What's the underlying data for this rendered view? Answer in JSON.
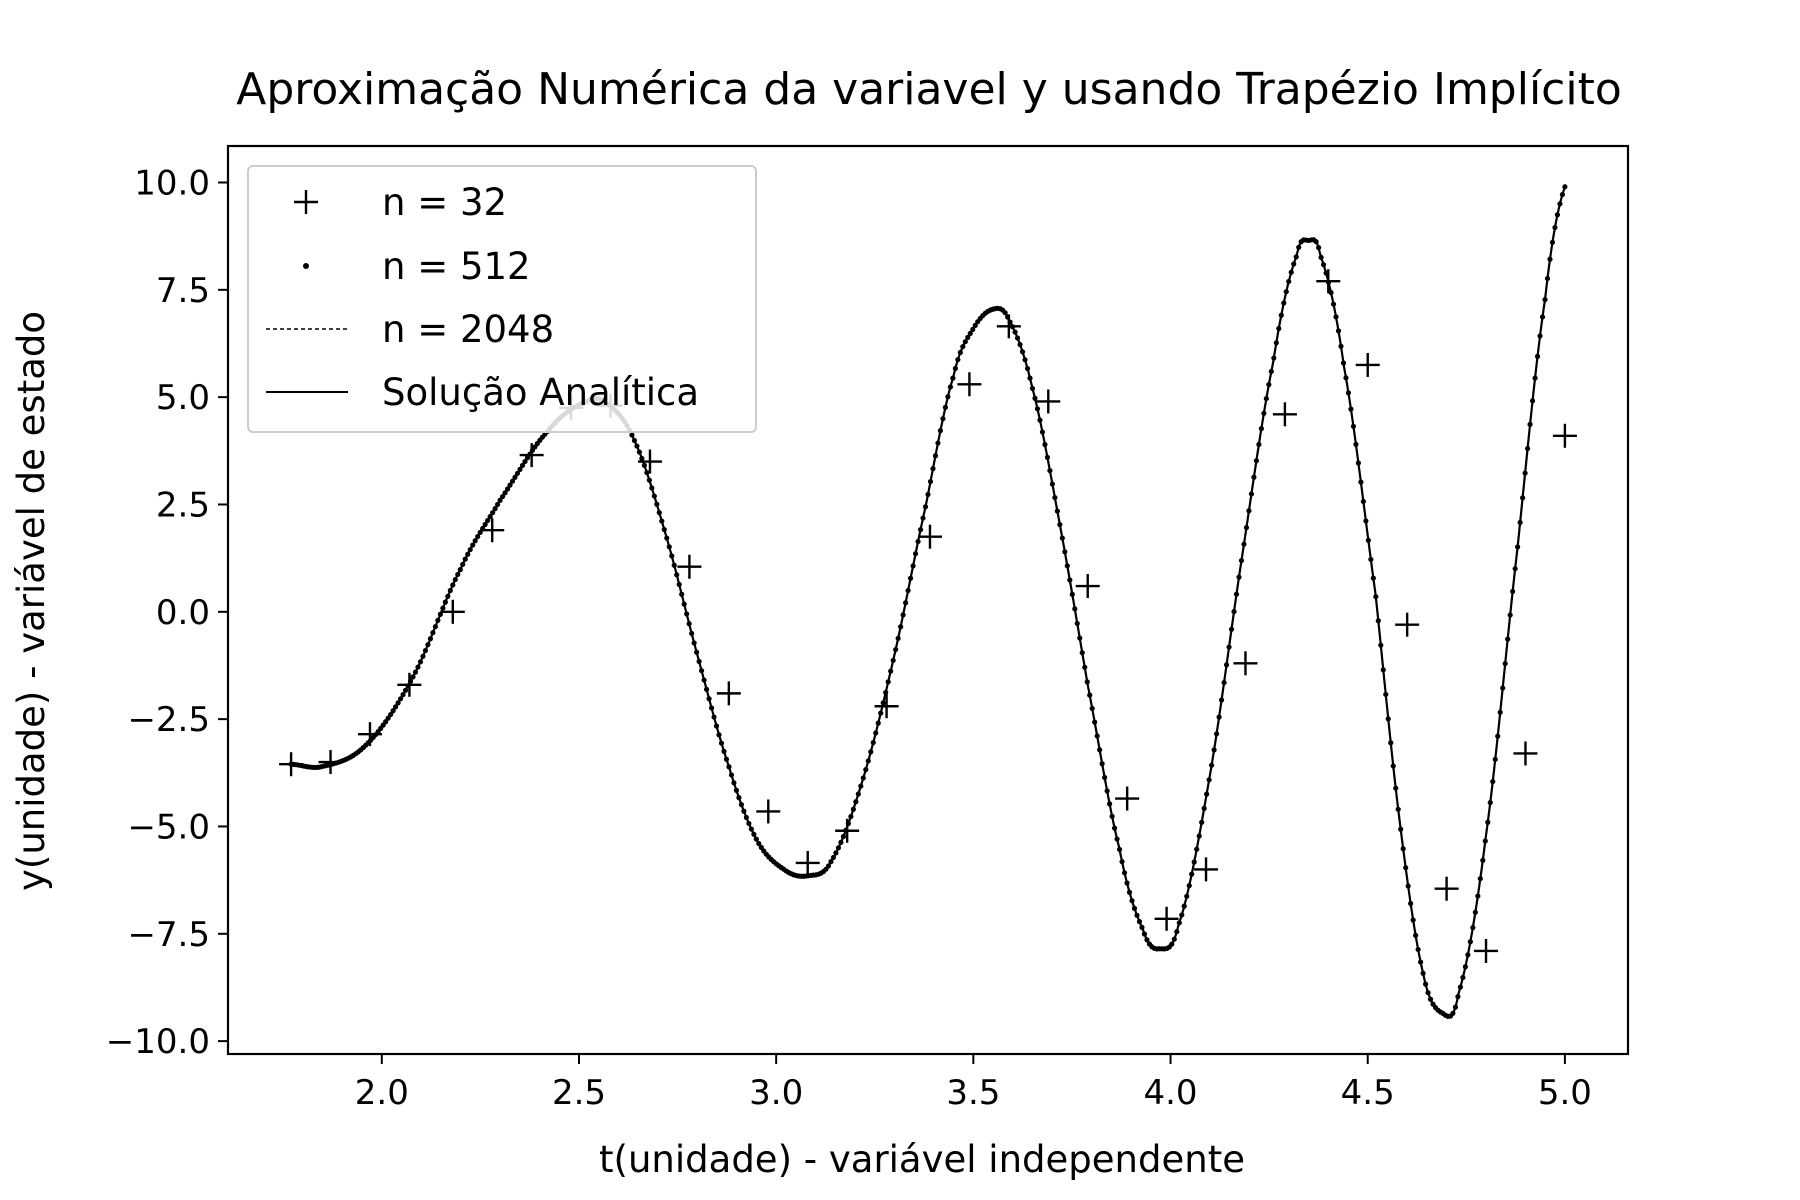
{
  "chart_data": {
    "type": "line",
    "title": "Aproximação Numérica da variavel y usando Trapézio Implícito",
    "xlabel": "t(unidade) - variável independente",
    "ylabel": "y(unidade) - variável de estado",
    "xlim": [
      1.61,
      5.16
    ],
    "ylim": [
      -10.3,
      10.85
    ],
    "xticks": [
      2.0,
      2.5,
      3.0,
      3.5,
      4.0,
      4.5,
      5.0
    ],
    "xtick_labels": [
      "2.0",
      "2.5",
      "3.0",
      "3.5",
      "4.0",
      "4.5",
      "5.0"
    ],
    "yticks": [
      10.0,
      7.5,
      5.0,
      2.5,
      0.0,
      -2.5,
      -5.0,
      -7.5,
      -10.0
    ],
    "ytick_labels": [
      "10.0",
      "7.5",
      "5.0",
      "2.5",
      "0.0",
      "−2.5",
      "−5.0",
      "−7.5",
      "−10.0"
    ],
    "grid": false,
    "legend_position": "top-left",
    "series": [
      {
        "name": "n = 32",
        "style": "plus",
        "x": [
          1.77,
          1.87,
          1.97,
          2.07,
          2.18,
          2.28,
          2.38,
          2.48,
          2.58,
          2.68,
          2.78,
          2.88,
          2.98,
          3.08,
          3.18,
          3.28,
          3.39,
          3.49,
          3.59,
          3.69,
          3.79,
          3.89,
          3.99,
          4.09,
          4.19,
          4.29,
          4.4,
          4.5,
          4.6,
          4.7,
          4.8,
          4.9,
          5.0
        ],
        "y": [
          -3.55,
          -3.5,
          -2.85,
          -1.7,
          0.0,
          1.9,
          3.65,
          4.75,
          4.8,
          3.5,
          1.05,
          -1.9,
          -4.65,
          -5.85,
          -5.1,
          -2.2,
          1.75,
          5.3,
          6.65,
          4.9,
          0.6,
          -4.35,
          -7.15,
          -6.0,
          -1.2,
          4.6,
          7.7,
          5.75,
          -0.3,
          -6.45,
          -7.9,
          -3.3,
          4.1
        ]
      },
      {
        "name": "n = 512",
        "style": "dot",
        "x_start": 1.77,
        "x_end": 5.0,
        "points": 513
      },
      {
        "name": "n = 2048",
        "style": "dashed"
      },
      {
        "name": "Solução Analítica",
        "style": "solid",
        "x": [
          1.77,
          1.85,
          1.96,
          2.08,
          2.2,
          2.3,
          2.42,
          2.52,
          2.57,
          2.64,
          2.72,
          2.8,
          2.88,
          2.95,
          3.02,
          3.08,
          3.14,
          3.22,
          3.3,
          3.38,
          3.45,
          3.5,
          3.55,
          3.59,
          3.65,
          3.72,
          3.79,
          3.87,
          3.93,
          3.97,
          4.02,
          4.1,
          4.18,
          4.26,
          4.32,
          4.35,
          4.38,
          4.44,
          4.52,
          4.58,
          4.64,
          4.69,
          4.73,
          4.8,
          4.88,
          4.95,
          5.0
        ],
        "y": [
          -3.55,
          -3.6,
          -3.1,
          -1.5,
          1.0,
          2.6,
          4.2,
          4.9,
          4.85,
          4.0,
          1.8,
          -1.0,
          -3.6,
          -5.3,
          -6.0,
          -6.15,
          -5.8,
          -3.9,
          -1.0,
          2.5,
          5.5,
          6.6,
          7.05,
          6.8,
          5.2,
          2.0,
          -1.7,
          -5.5,
          -7.4,
          -7.85,
          -7.3,
          -3.8,
          1.2,
          5.8,
          8.3,
          8.65,
          8.3,
          5.7,
          0.4,
          -4.8,
          -8.4,
          -9.35,
          -8.9,
          -5.2,
          1.5,
          7.3,
          9.9
        ]
      }
    ]
  }
}
